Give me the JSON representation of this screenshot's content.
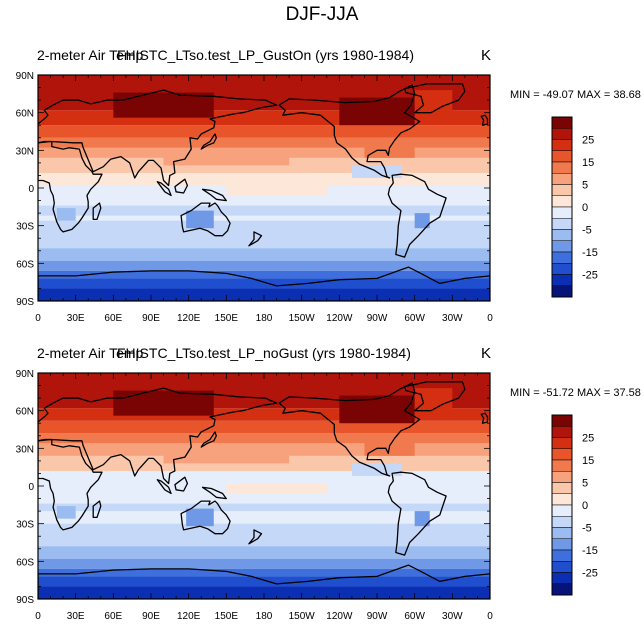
{
  "figure": {
    "title": "DJF-JJA"
  },
  "panels": [
    {
      "left_label": "2-meter Air Temp",
      "center_label": "FHISTC_LTso.test_LP_GustOn (yrs 1980-1984)",
      "right_label": "K",
      "min_label": "MIN = -49.07",
      "max_label": "MAX =  38.68"
    },
    {
      "left_label": "2-meter Air Temp",
      "center_label": "FHISTC_LTso.test_LP_noGust (yrs 1980-1984)",
      "right_label": "K",
      "min_label": "MIN = -51.72",
      "max_label": "MAX =  37.58"
    }
  ],
  "chart_data": [
    {
      "type": "heatmap",
      "title": "2-meter Air Temp",
      "subtitle": "FHISTC_LTso.test_LP_GustOn (yrs 1980-1984)",
      "units": "K",
      "min": -49.07,
      "max": 38.68,
      "x_ticks": [
        "0",
        "30E",
        "60E",
        "90E",
        "120E",
        "150E",
        "180",
        "150W",
        "120W",
        "90W",
        "60W",
        "30W",
        "0"
      ],
      "y_ticks": [
        "90N",
        "60N",
        "30N",
        "0",
        "30S",
        "60S",
        "90S"
      ],
      "xlim": [
        0,
        360
      ],
      "ylim": [
        -90,
        90
      ],
      "colorbar_labels": [
        "25",
        "15",
        "5",
        "0",
        "-5",
        "-15",
        "-25"
      ],
      "colorbar_colors": [
        "#7a0403",
        "#b0140a",
        "#d42f11",
        "#e8552a",
        "#f07a4e",
        "#f7a27c",
        "#fbc7aa",
        "#fde7d8",
        "#e6eefc",
        "#c5d8f7",
        "#9bbcf0",
        "#6f99e6",
        "#3f6fdc",
        "#1f4fcf",
        "#0b2fb3",
        "#06147a"
      ],
      "colormap": "blue-white-red diverging"
    },
    {
      "type": "heatmap",
      "title": "2-meter Air Temp",
      "subtitle": "FHISTC_LTso.test_LP_noGust (yrs 1980-1984)",
      "units": "K",
      "min": -51.72,
      "max": 37.58,
      "x_ticks": [
        "0",
        "30E",
        "60E",
        "90E",
        "120E",
        "150E",
        "180",
        "150W",
        "120W",
        "90W",
        "60W",
        "30W",
        "0"
      ],
      "y_ticks": [
        "90N",
        "60N",
        "30N",
        "0",
        "30S",
        "60S",
        "90S"
      ],
      "xlim": [
        0,
        360
      ],
      "ylim": [
        -90,
        90
      ],
      "colorbar_labels": [
        "25",
        "15",
        "5",
        "0",
        "-5",
        "-15",
        "-25"
      ],
      "colorbar_colors": [
        "#7a0403",
        "#b0140a",
        "#d42f11",
        "#e8552a",
        "#f07a4e",
        "#f7a27c",
        "#fbc7aa",
        "#fde7d8",
        "#e6eefc",
        "#c5d8f7",
        "#9bbcf0",
        "#6f99e6",
        "#3f6fdc",
        "#1f4fcf",
        "#0b2fb3",
        "#06147a"
      ],
      "colormap": "blue-white-red diverging"
    }
  ]
}
